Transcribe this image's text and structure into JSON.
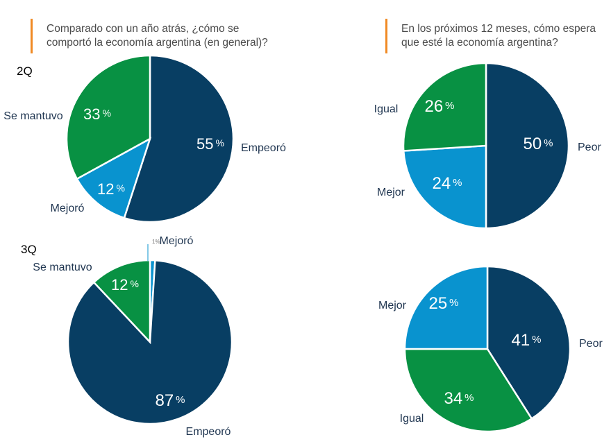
{
  "colors": {
    "empeoro": "#083e63",
    "se_mantuvo": "#089143",
    "mejoro": "#0993cf",
    "accent": "#f08a24"
  },
  "left_question": {
    "line1": "Comparado con un año atrás, ¿cómo se",
    "line2": "comportó la economía argentina (en general)?"
  },
  "right_question": {
    "line1": "En los próximos 12 meses, cómo espera",
    "line2": "que esté la economía argentina?"
  },
  "periods": {
    "q2": "2Q",
    "q3": "3Q"
  },
  "chart_data": [
    {
      "type": "pie",
      "id": "past_2q",
      "title": "Comparado con un año atrás, ¿cómo se comportó la economía argentina (en general)?",
      "period": "2Q",
      "slices": [
        {
          "label": "Empeoró",
          "value": 55,
          "value_text": "55",
          "color": "#083e63"
        },
        {
          "label": "Mejoró",
          "value": 12,
          "value_text": "12",
          "color": "#0993cf"
        },
        {
          "label": "Se mantuvo",
          "value": 33,
          "value_text": "33",
          "color": "#089143"
        }
      ]
    },
    {
      "type": "pie",
      "id": "past_3q",
      "title": "Comparado con un año atrás, ¿cómo se comportó la economía argentina (en general)?",
      "period": "3Q",
      "slices": [
        {
          "label": "Mejoró",
          "value": 1,
          "value_text": "1",
          "color": "#0993cf"
        },
        {
          "label": "Empeoró",
          "value": 87,
          "value_text": "87",
          "color": "#083e63"
        },
        {
          "label": "Se mantuvo",
          "value": 12,
          "value_text": "12",
          "color": "#089143"
        }
      ]
    },
    {
      "type": "pie",
      "id": "future_2q",
      "title": "En los próximos 12 meses, cómo espera que esté la economía argentina?",
      "period": "2Q",
      "slices": [
        {
          "label": "Peor",
          "value": 50,
          "value_text": "50",
          "color": "#083e63"
        },
        {
          "label": "Mejor",
          "value": 24,
          "value_text": "24",
          "color": "#0993cf"
        },
        {
          "label": "Igual",
          "value": 26,
          "value_text": "26",
          "color": "#089143"
        }
      ]
    },
    {
      "type": "pie",
      "id": "future_3q",
      "title": "En los próximos 12 meses, cómo espera que esté la economía argentina?",
      "period": "3Q",
      "slices": [
        {
          "label": "Peor",
          "value": 41,
          "value_text": "41",
          "color": "#083e63"
        },
        {
          "label": "Igual",
          "value": 34,
          "value_text": "34",
          "color": "#089143"
        },
        {
          "label": "Mejor",
          "value": 25,
          "value_text": "25",
          "color": "#0993cf"
        }
      ]
    }
  ]
}
